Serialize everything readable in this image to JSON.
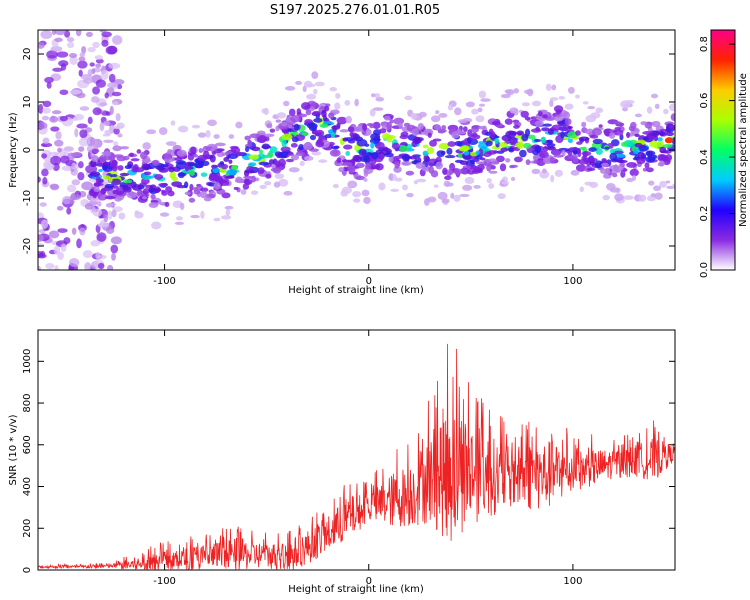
{
  "title": "S197.2025.276.01.01.R05",
  "chart_data": [
    {
      "type": "heatmap",
      "id": "spectrogram",
      "xlabel": "Height of straight line (km)",
      "ylabel": "Frequency (Hz)",
      "xlim": [
        -162,
        150
      ],
      "ylim": [
        -25,
        25
      ],
      "xticks": [
        -100,
        0,
        100
      ],
      "yticks": [
        -20,
        -10,
        0,
        10,
        20
      ],
      "ridge": {
        "x": [
          -130,
          -110,
          -90,
          -70,
          -50,
          -35,
          -25,
          -18,
          -10,
          0,
          10,
          20,
          35,
          50,
          60,
          80,
          95,
          110,
          125,
          140,
          147
        ],
        "freq": [
          -5,
          -6,
          -5,
          -4,
          -1,
          3,
          6,
          4,
          0,
          0,
          2,
          0,
          0,
          0,
          1,
          2,
          3,
          0,
          0,
          1,
          2
        ]
      },
      "colorbar": {
        "label": "Normalized spectral amplitude",
        "range": [
          0.0,
          0.85
        ],
        "ticks": [
          "0.0",
          "0.2",
          "0.4",
          "0.6",
          "0.8"
        ],
        "tick_values": [
          0.0,
          0.2,
          0.4,
          0.6,
          0.8
        ],
        "colors": [
          "#ffffff",
          "#8a2be2",
          "#2200ff",
          "#00ccff",
          "#00ff66",
          "#aaff00",
          "#ffcc00",
          "#ff2200",
          "#ff0088"
        ]
      }
    },
    {
      "type": "line",
      "id": "snr",
      "xlabel": "Height of straight line (km)",
      "ylabel": "SNR (10 * v/v)",
      "xlim": [
        -162,
        150
      ],
      "ylim": [
        0,
        1150
      ],
      "xticks": [
        -100,
        0,
        100
      ],
      "yticks": [
        0,
        200,
        400,
        600,
        800,
        1000
      ],
      "color": "#ee2222",
      "series": {
        "name": "SNR",
        "x": [
          -162,
          -140,
          -125,
          -110,
          -95,
          -80,
          -65,
          -50,
          -40,
          -30,
          -20,
          -10,
          0,
          10,
          20,
          30,
          40,
          50,
          60,
          70,
          80,
          90,
          100,
          110,
          120,
          130,
          140,
          150
        ],
        "mid": [
          15,
          15,
          20,
          30,
          50,
          60,
          75,
          70,
          60,
          110,
          170,
          250,
          300,
          330,
          360,
          440,
          480,
          470,
          450,
          440,
          450,
          460,
          470,
          490,
          510,
          520,
          530,
          560
        ],
        "peak": [
          25,
          30,
          40,
          110,
          160,
          180,
          220,
          180,
          200,
          260,
          330,
          440,
          430,
          560,
          640,
          840,
          1140,
          930,
          800,
          700,
          760,
          760,
          660,
          650,
          640,
          660,
          720,
          620
        ]
      }
    }
  ]
}
